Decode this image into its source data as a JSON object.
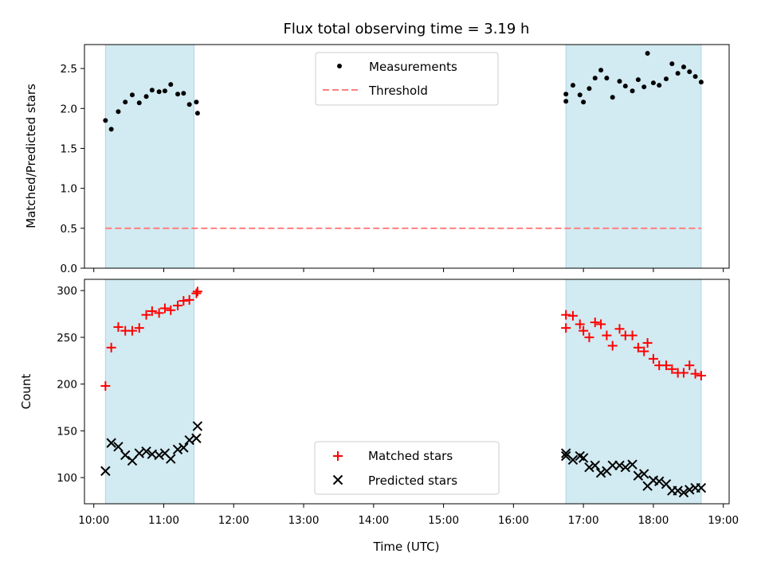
{
  "chart_data": [
    {
      "panel": "top",
      "type": "scatter",
      "title": "Flux total observing time = 3.19 h",
      "xlabel": "",
      "ylabel": "Matched/Predicted stars",
      "xlim": [
        "09:52",
        "19:05"
      ],
      "ylim": [
        0,
        2.8
      ],
      "yticks": [
        0.0,
        0.5,
        1.0,
        1.5,
        2.0,
        2.5
      ],
      "ytick_labels": [
        "0.0",
        "0.5",
        "1.0",
        "1.5",
        "2.0",
        "2.5"
      ],
      "grid": false,
      "legend_position": "top-center",
      "shaded_intervals": [
        [
          "10:10",
          "11:26"
        ],
        [
          "16:45",
          "18:41"
        ]
      ],
      "colors": {
        "shade": "#add8e6",
        "measurements": "#000000",
        "threshold": "#ff7f7f"
      },
      "threshold": {
        "name": "Threshold",
        "value": 0.5,
        "x": [
          "10:10",
          "18:41"
        ]
      },
      "series": [
        {
          "name": "Measurements",
          "marker": "dot",
          "points": [
            [
              "10:10",
              1.85
            ],
            [
              "10:15",
              1.74
            ],
            [
              "10:21",
              1.96
            ],
            [
              "10:27",
              2.08
            ],
            [
              "10:33",
              2.17
            ],
            [
              "10:39",
              2.07
            ],
            [
              "10:45",
              2.15
            ],
            [
              "10:50",
              2.23
            ],
            [
              "10:56",
              2.21
            ],
            [
              "11:01",
              2.22
            ],
            [
              "11:06",
              2.3
            ],
            [
              "11:12",
              2.18
            ],
            [
              "11:17",
              2.19
            ],
            [
              "11:22",
              2.05
            ],
            [
              "11:28",
              2.08
            ],
            [
              "11:29",
              1.94
            ],
            [
              "16:45",
              2.09
            ],
            [
              "16:45",
              2.18
            ],
            [
              "16:51",
              2.29
            ],
            [
              "16:57",
              2.17
            ],
            [
              "17:00",
              2.08
            ],
            [
              "17:05",
              2.25
            ],
            [
              "17:10",
              2.38
            ],
            [
              "17:15",
              2.48
            ],
            [
              "17:20",
              2.38
            ],
            [
              "17:25",
              2.14
            ],
            [
              "17:31",
              2.34
            ],
            [
              "17:36",
              2.28
            ],
            [
              "17:42",
              2.22
            ],
            [
              "17:47",
              2.36
            ],
            [
              "17:52",
              2.27
            ],
            [
              "17:55",
              2.69
            ],
            [
              "18:00",
              2.32
            ],
            [
              "18:05",
              2.29
            ],
            [
              "18:11",
              2.37
            ],
            [
              "18:16",
              2.56
            ],
            [
              "18:21",
              2.44
            ],
            [
              "18:26",
              2.52
            ],
            [
              "18:31",
              2.46
            ],
            [
              "18:36",
              2.4
            ],
            [
              "18:41",
              2.33
            ]
          ]
        }
      ]
    },
    {
      "panel": "bottom",
      "type": "scatter",
      "title": "",
      "xlabel": "Time (UTC)",
      "ylabel": "Count",
      "xlim": [
        "09:52",
        "19:05"
      ],
      "ylim": [
        72,
        312
      ],
      "xticks": [
        "10:00",
        "11:00",
        "12:00",
        "13:00",
        "14:00",
        "15:00",
        "16:00",
        "17:00",
        "18:00",
        "19:00"
      ],
      "yticks": [
        100,
        150,
        200,
        250,
        300
      ],
      "ytick_labels": [
        "100",
        "150",
        "200",
        "250",
        "300"
      ],
      "grid": false,
      "legend_position": "bottom-center",
      "shaded_intervals": [
        [
          "10:10",
          "11:26"
        ],
        [
          "16:45",
          "18:41"
        ]
      ],
      "colors": {
        "shade": "#add8e6",
        "matched": "#ff0000",
        "predicted": "#000000"
      },
      "series": [
        {
          "name": "Matched stars",
          "marker": "plus",
          "points": [
            [
              "10:10",
              198
            ],
            [
              "10:15",
              239
            ],
            [
              "10:21",
              261
            ],
            [
              "10:27",
              257
            ],
            [
              "10:33",
              257
            ],
            [
              "10:39",
              260
            ],
            [
              "10:45",
              274
            ],
            [
              "10:50",
              278
            ],
            [
              "10:56",
              276
            ],
            [
              "11:01",
              281
            ],
            [
              "11:06",
              279
            ],
            [
              "11:12",
              284
            ],
            [
              "11:17",
              289
            ],
            [
              "11:22",
              290
            ],
            [
              "11:28",
              297
            ],
            [
              "11:29",
              299
            ],
            [
              "16:45",
              274
            ],
            [
              "16:45",
              260
            ],
            [
              "16:51",
              273
            ],
            [
              "16:57",
              264
            ],
            [
              "17:00",
              257
            ],
            [
              "17:05",
              250
            ],
            [
              "17:10",
              266
            ],
            [
              "17:15",
              264
            ],
            [
              "17:20",
              252
            ],
            [
              "17:25",
              241
            ],
            [
              "17:31",
              259
            ],
            [
              "17:36",
              252
            ],
            [
              "17:42",
              252
            ],
            [
              "17:47",
              239
            ],
            [
              "17:52",
              235
            ],
            [
              "17:55",
              244
            ],
            [
              "18:00",
              227
            ],
            [
              "18:05",
              220
            ],
            [
              "18:11",
              220
            ],
            [
              "18:16",
              216
            ],
            [
              "18:21",
              212
            ],
            [
              "18:26",
              212
            ],
            [
              "18:31",
              220
            ],
            [
              "18:36",
              211
            ],
            [
              "18:41",
              209
            ]
          ]
        },
        {
          "name": "Predicted stars",
          "marker": "x",
          "points": [
            [
              "10:10",
              107
            ],
            [
              "10:15",
              137
            ],
            [
              "10:21",
              133
            ],
            [
              "10:27",
              124
            ],
            [
              "10:33",
              118
            ],
            [
              "10:39",
              126
            ],
            [
              "10:45",
              128
            ],
            [
              "10:50",
              125
            ],
            [
              "10:56",
              124
            ],
            [
              "11:01",
              126
            ],
            [
              "11:06",
              120
            ],
            [
              "11:12",
              130
            ],
            [
              "11:17",
              132
            ],
            [
              "11:22",
              140
            ],
            [
              "11:28",
              142
            ],
            [
              "11:29",
              155
            ],
            [
              "16:45",
              126
            ],
            [
              "16:45",
              123
            ],
            [
              "16:51",
              119
            ],
            [
              "16:57",
              123
            ],
            [
              "17:00",
              121
            ],
            [
              "17:05",
              111
            ],
            [
              "17:10",
              113
            ],
            [
              "17:15",
              105
            ],
            [
              "17:20",
              107
            ],
            [
              "17:25",
              113
            ],
            [
              "17:31",
              113
            ],
            [
              "17:36",
              111
            ],
            [
              "17:42",
              114
            ],
            [
              "17:47",
              102
            ],
            [
              "17:52",
              104
            ],
            [
              "17:55",
              91
            ],
            [
              "18:00",
              97
            ],
            [
              "18:05",
              96
            ],
            [
              "18:11",
              93
            ],
            [
              "18:16",
              86
            ],
            [
              "18:21",
              86
            ],
            [
              "18:26",
              84
            ],
            [
              "18:31",
              87
            ],
            [
              "18:36",
              89
            ],
            [
              "18:41",
              89
            ]
          ]
        }
      ]
    }
  ]
}
